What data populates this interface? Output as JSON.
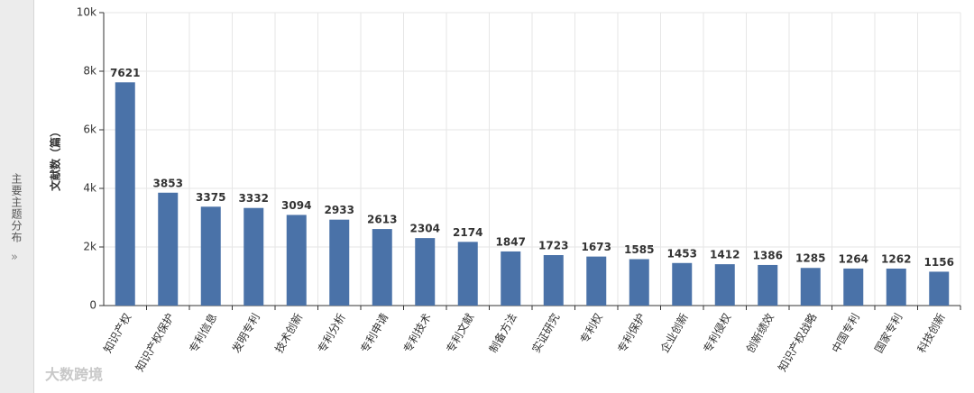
{
  "sidebar_label": "主要主题分布",
  "watermark": "大数跨境",
  "chart_data": {
    "type": "bar",
    "y_label": "文献数（篇）",
    "categories": [
      "知识产权",
      "知识产权保护",
      "专利信息",
      "发明专利",
      "技术创新",
      "专利分析",
      "专利申请",
      "专利技术",
      "专利文献",
      "制备方法",
      "实证研究",
      "专利权",
      "专利保护",
      "企业创新",
      "专利侵权",
      "创新绩效",
      "知识产权战略",
      "中国专利",
      "国家专利",
      "科技创新"
    ],
    "values": [
      7621,
      3853,
      3375,
      3332,
      3094,
      2933,
      2613,
      2304,
      2174,
      1847,
      1723,
      1673,
      1585,
      1453,
      1412,
      1386,
      1285,
      1264,
      1262,
      1156
    ],
    "color": "#4a72a8",
    "ylim": [
      0,
      10000
    ],
    "yticks": [
      0,
      {
        "value": 2000,
        "label": "2k"
      },
      {
        "value": 4000,
        "label": "4k"
      },
      {
        "value": 6000,
        "label": "6k"
      },
      {
        "value": 8000,
        "label": "8k"
      },
      {
        "value": 10000,
        "label": "10k"
      }
    ],
    "grid": true
  }
}
